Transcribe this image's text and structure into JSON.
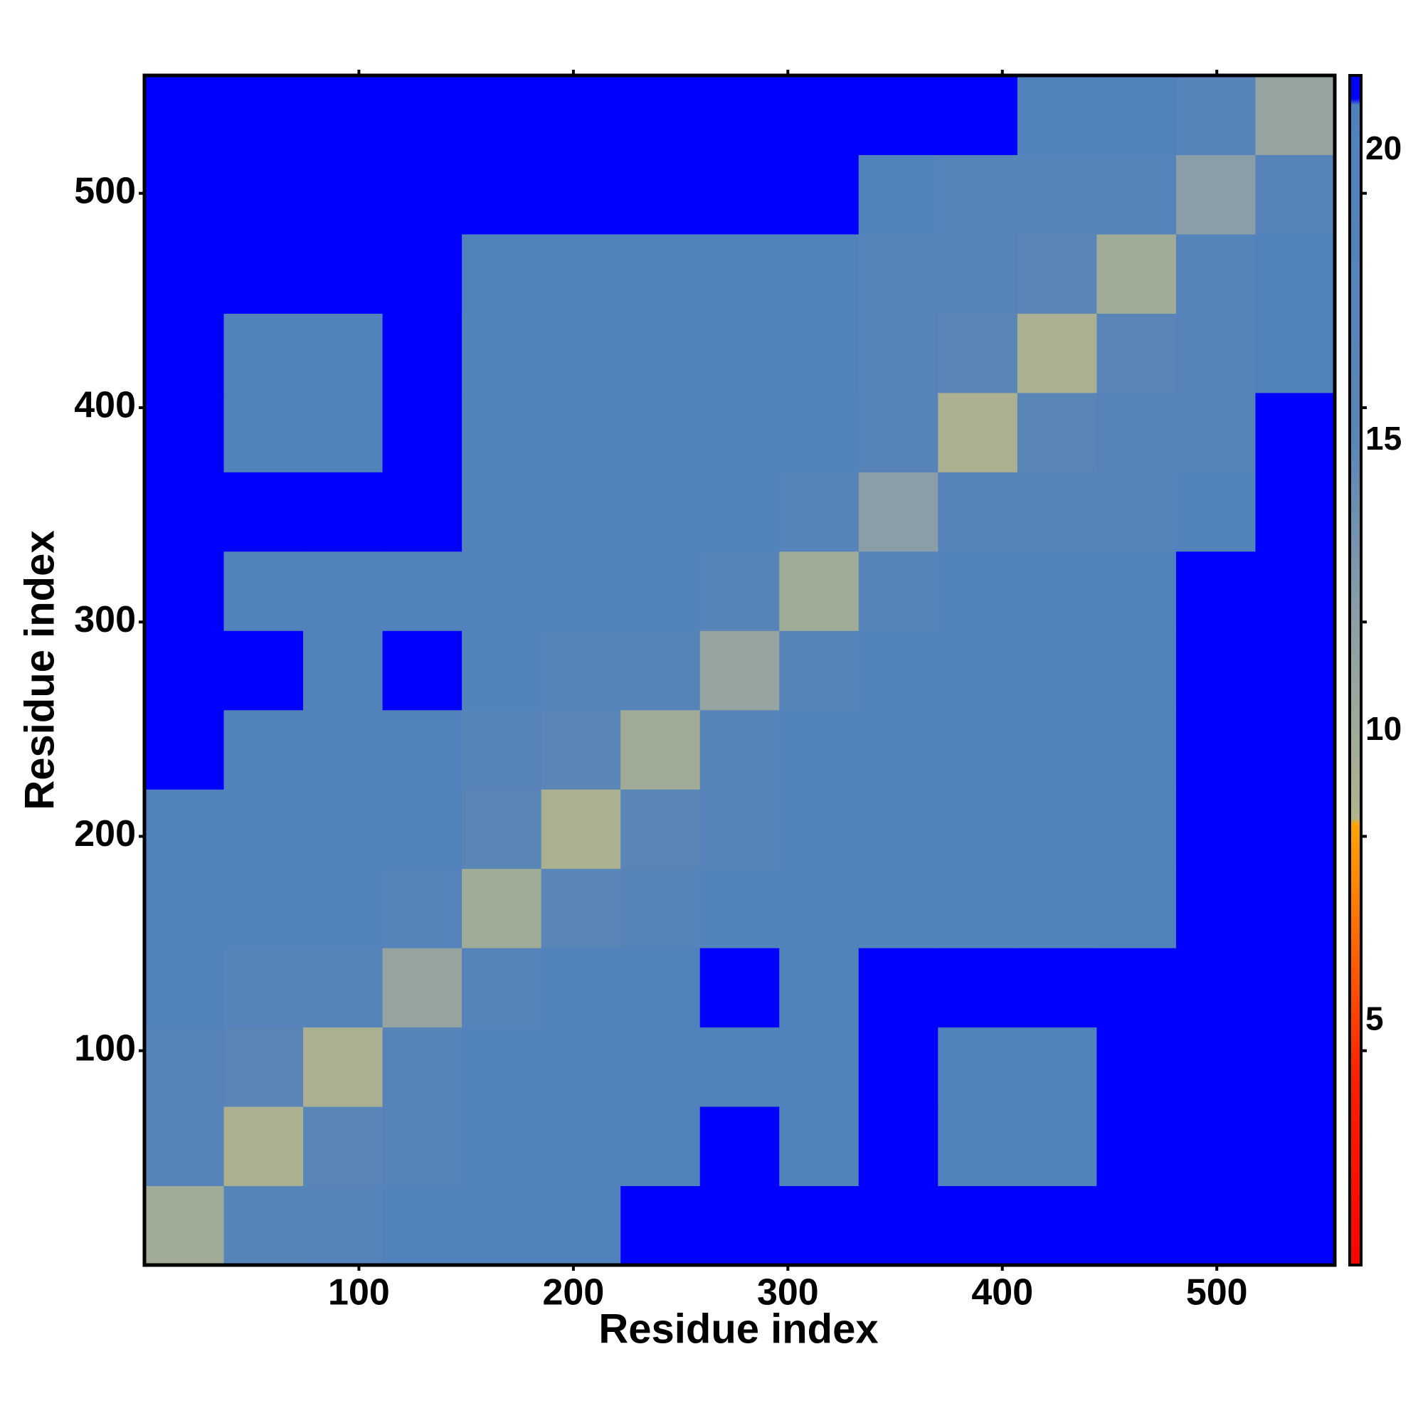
{
  "chart_data": {
    "type": "heatmap",
    "xlabel": "Residue index",
    "ylabel": "Residue index",
    "x_bins": [
      0,
      37,
      74,
      111,
      148,
      185,
      222,
      259,
      296,
      333,
      370,
      407,
      444,
      481,
      518,
      555
    ],
    "y_bins": [
      0,
      37,
      74,
      111,
      148,
      185,
      222,
      259,
      296,
      333,
      370,
      407,
      444,
      481,
      518,
      555
    ],
    "values": [
      [
        10,
        17,
        18,
        20,
        20,
        20,
        21,
        21,
        21,
        21,
        21,
        21,
        21,
        21,
        21
      ],
      [
        17,
        9,
        16,
        18,
        19,
        19,
        20,
        21,
        20,
        21,
        20,
        20,
        21,
        21,
        21
      ],
      [
        18,
        16,
        9,
        17,
        19,
        19,
        20,
        20,
        20,
        21,
        20,
        20,
        21,
        21,
        21
      ],
      [
        20,
        18,
        17,
        11,
        18,
        20,
        20,
        21,
        20,
        21,
        21,
        21,
        21,
        21,
        21
      ],
      [
        20,
        19,
        19,
        18,
        10,
        16,
        17,
        19,
        20,
        19,
        19,
        19,
        20,
        21,
        21
      ],
      [
        20,
        19,
        19,
        20,
        16,
        9,
        16,
        18,
        19,
        19,
        19,
        19,
        20,
        21,
        21
      ],
      [
        21,
        20,
        20,
        20,
        17,
        16,
        10,
        17,
        19,
        20,
        19,
        19,
        20,
        21,
        21
      ],
      [
        21,
        21,
        20,
        21,
        19,
        18,
        17,
        11,
        17,
        19,
        19,
        20,
        20,
        21,
        21
      ],
      [
        21,
        20,
        20,
        20,
        20,
        19,
        19,
        17,
        10,
        18,
        19,
        20,
        20,
        21,
        21
      ],
      [
        21,
        21,
        21,
        21,
        19,
        19,
        20,
        19,
        18,
        12,
        17,
        18,
        18,
        19,
        21
      ],
      [
        21,
        20,
        20,
        21,
        19,
        19,
        19,
        19,
        19,
        17,
        9,
        16,
        17,
        17,
        21
      ],
      [
        21,
        20,
        20,
        21,
        19,
        19,
        19,
        20,
        20,
        18,
        16,
        9,
        16,
        18,
        20
      ],
      [
        21,
        21,
        21,
        21,
        20,
        20,
        20,
        20,
        20,
        18,
        17,
        16,
        10,
        18,
        20
      ],
      [
        21,
        21,
        21,
        21,
        21,
        21,
        21,
        21,
        21,
        19,
        17,
        18,
        18,
        12,
        18
      ],
      [
        21,
        21,
        21,
        21,
        21,
        21,
        21,
        21,
        21,
        21,
        21,
        20,
        20,
        18,
        11
      ]
    ],
    "xlim": [
      0,
      555
    ],
    "ylim": [
      0,
      555
    ],
    "xticks": [
      100,
      200,
      300,
      400,
      500
    ],
    "yticks": [
      100,
      200,
      300,
      400,
      500
    ],
    "colorbar": {
      "lim": [
        0.8,
        21.3
      ],
      "ticks": [
        5,
        10,
        15,
        20
      ],
      "colorscale": [
        {
          "value": 0.8,
          "color": "#ff0000"
        },
        {
          "value": 4,
          "color": "#ff2000"
        },
        {
          "value": 8.4,
          "color": "#ffa500"
        },
        {
          "value": 8.5,
          "color": "#b0b48c"
        },
        {
          "value": 12,
          "color": "#8a9ea8"
        },
        {
          "value": 15,
          "color": "#5b86b6"
        },
        {
          "value": 20.8,
          "color": "#4f81bd"
        },
        {
          "value": 20.9,
          "color": "#0000ff"
        },
        {
          "value": 21.3,
          "color": "#0000ff"
        }
      ]
    }
  }
}
